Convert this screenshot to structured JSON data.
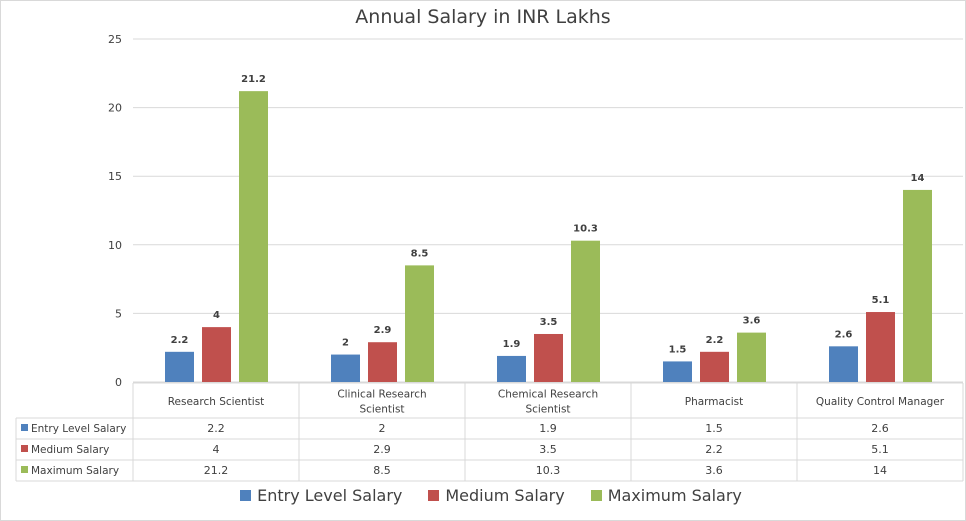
{
  "chart_data": {
    "type": "bar",
    "title": "Annual Salary in INR Lakhs",
    "categories": [
      [
        "Research Scientist"
      ],
      [
        "Clinical Research",
        "Scientist"
      ],
      [
        "Chemical Research",
        "Scientist"
      ],
      [
        "Pharmacist"
      ],
      [
        "Quality Control Manager"
      ]
    ],
    "series": [
      {
        "name": "Entry Level Salary",
        "color": "#4f81bd",
        "values": [
          2.2,
          2,
          1.9,
          1.5,
          2.6
        ]
      },
      {
        "name": "Medium Salary",
        "color": "#c0504d",
        "values": [
          4,
          2.9,
          3.5,
          2.2,
          5.1
        ]
      },
      {
        "name": "Maximum Salary",
        "color": "#9bbb59",
        "values": [
          21.2,
          8.5,
          10.3,
          3.6,
          14
        ]
      }
    ],
    "ylim": [
      0,
      25
    ],
    "yticks": [
      0,
      5,
      10,
      15,
      20,
      25
    ],
    "grid": true,
    "data_table": true,
    "legend": "bottom",
    "xlabel": "",
    "ylabel": ""
  }
}
